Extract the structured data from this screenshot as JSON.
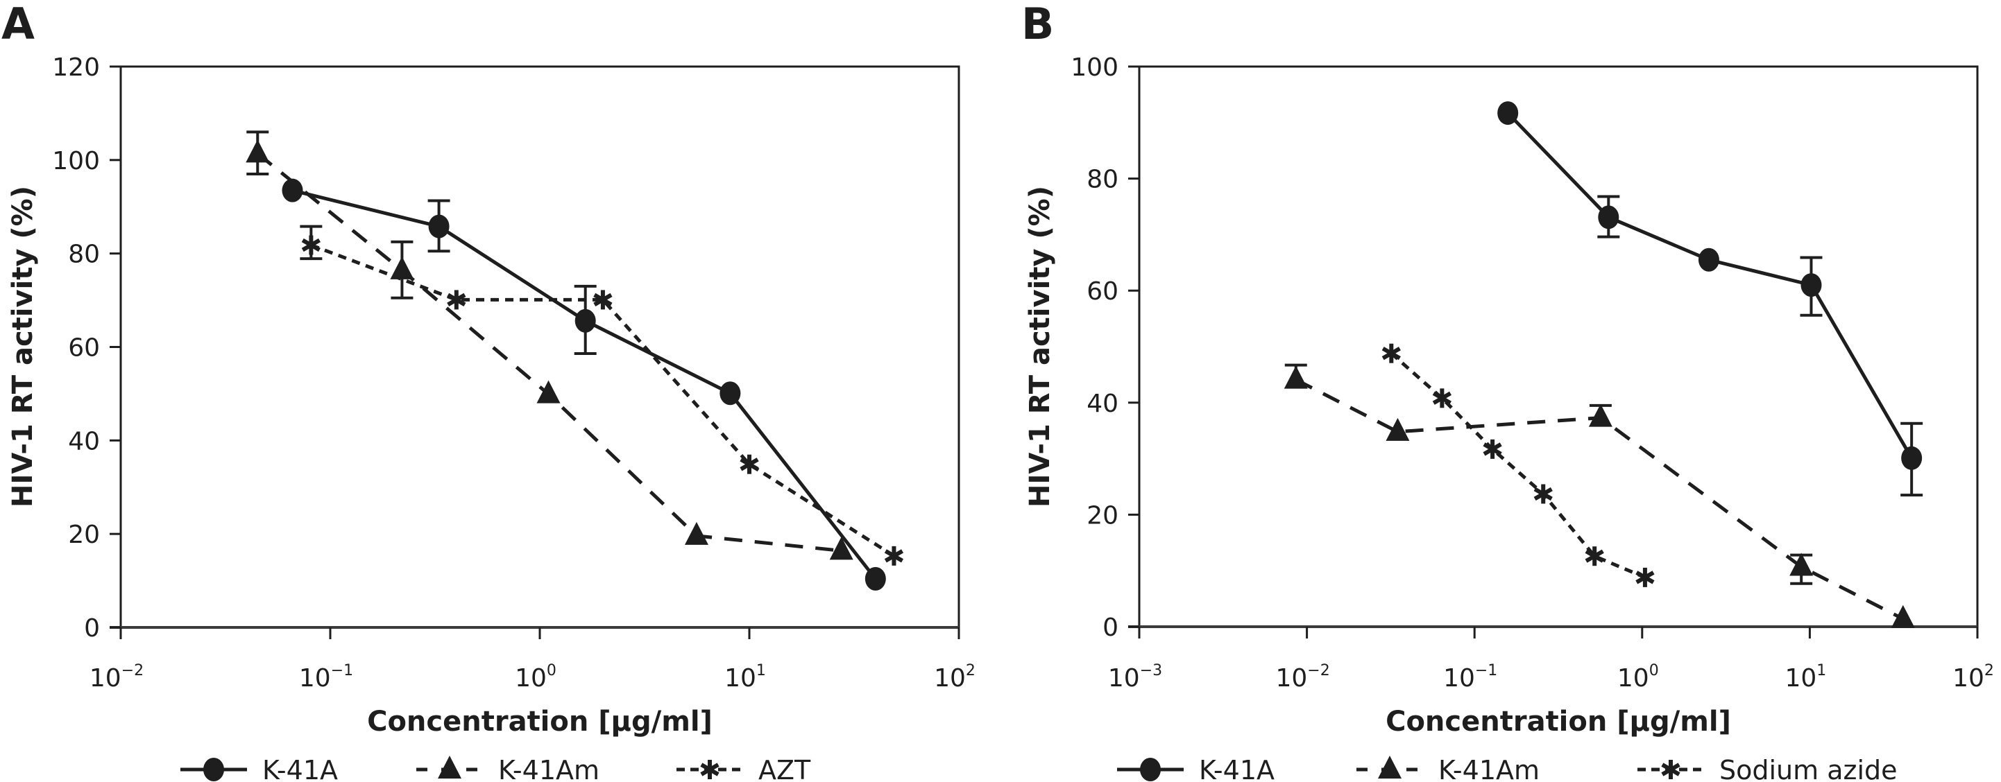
{
  "figure": {
    "panels": [
      "A",
      "B"
    ]
  },
  "chart_data": [
    {
      "panel": "A",
      "type": "line",
      "title": "",
      "xlabel": "Concentration [µg/ml]",
      "ylabel": "HIV-1 RT activity (%)",
      "xscale": "log",
      "xlim": [
        0.01,
        100
      ],
      "ylim": [
        0,
        120
      ],
      "x_ticks": [
        {
          "base": "10",
          "exp": "−2"
        },
        {
          "base": "10",
          "exp": "−1"
        },
        {
          "base": "10",
          "exp": "0"
        },
        {
          "base": "10",
          "exp": "1"
        },
        {
          "base": "10",
          "exp": "2"
        }
      ],
      "x_tick_values": [
        0.01,
        0.1,
        1,
        10,
        100
      ],
      "y_ticks": [
        0,
        20,
        40,
        60,
        80,
        100,
        120
      ],
      "y_tick_labels": [
        "0",
        "20",
        "40",
        "60",
        "80",
        "100",
        "120"
      ],
      "grid": false,
      "legend_position": "bottom",
      "series": [
        {
          "name": "K-41A",
          "marker": "circle",
          "line": "solid",
          "x": [
            0.066,
            0.33,
            1.65,
            8.1,
            40
          ],
          "y": [
            93.5,
            85.8,
            65.6,
            50.1,
            10.4
          ],
          "err_low": [
            null,
            80.5,
            58.6,
            null,
            null
          ],
          "err_high": [
            null,
            91.3,
            73.0,
            null,
            null
          ]
        },
        {
          "name": "K-41Am",
          "marker": "triangle",
          "line": "long-dash",
          "x": [
            0.045,
            0.22,
            1.1,
            5.6,
            27.5
          ],
          "y": [
            101.4,
            76.4,
            49.9,
            19.6,
            16.4
          ],
          "err_low": [
            97.0,
            70.5,
            null,
            null,
            null
          ],
          "err_high": [
            106.0,
            82.5,
            null,
            null,
            null
          ]
        },
        {
          "name": "AZT",
          "marker": "asterisk",
          "line": "short-dash",
          "x": [
            0.081,
            0.4,
            2.0,
            10,
            49
          ],
          "y": [
            81.8,
            70.1,
            70.1,
            34.9,
            15.3
          ],
          "err_low": [
            78.9,
            null,
            null,
            null,
            null
          ],
          "err_high": [
            85.8,
            null,
            null,
            null,
            null
          ]
        }
      ]
    },
    {
      "panel": "B",
      "type": "line",
      "title": "",
      "xlabel": "Concentration [µg/ml]",
      "ylabel": "HIV-1 RT activity (%)",
      "xscale": "log",
      "xlim": [
        0.001,
        100
      ],
      "ylim": [
        0,
        100
      ],
      "x_ticks": [
        {
          "base": "10",
          "exp": "−3"
        },
        {
          "base": "10",
          "exp": "−2"
        },
        {
          "base": "10",
          "exp": "−1"
        },
        {
          "base": "10",
          "exp": "0"
        },
        {
          "base": "10",
          "exp": "1"
        },
        {
          "base": "10",
          "exp": "2"
        }
      ],
      "x_tick_values": [
        0.001,
        0.01,
        0.1,
        1,
        10,
        100
      ],
      "y_ticks": [
        0,
        20,
        40,
        60,
        80,
        100
      ],
      "y_tick_labels": [
        "0",
        "20",
        "40",
        "60",
        "80",
        "100"
      ],
      "grid": false,
      "legend_position": "bottom",
      "series": [
        {
          "name": "K-41A",
          "marker": "circle",
          "line": "solid",
          "x": [
            0.158,
            0.63,
            2.5,
            10.2,
            40.5
          ],
          "y": [
            91.7,
            73.1,
            65.5,
            61.0,
            30.1
          ],
          "err_low": [
            null,
            69.6,
            null,
            55.6,
            23.5
          ],
          "err_high": [
            null,
            76.8,
            null,
            65.9,
            36.3
          ]
        },
        {
          "name": "K-41Am",
          "marker": "triangle",
          "line": "long-dash",
          "x": [
            0.0086,
            0.0348,
            0.565,
            8.9,
            36
          ],
          "y": [
            44.1,
            34.8,
            37.3,
            10.7,
            1.4
          ],
          "err_low": [
            null,
            null,
            null,
            7.7,
            null
          ],
          "err_high": [
            46.7,
            null,
            39.5,
            12.8,
            null
          ]
        },
        {
          "name": "Sodium azide",
          "marker": "asterisk",
          "line": "short-dash",
          "x": [
            0.0319,
            0.064,
            0.128,
            0.257,
            0.52,
            1.04
          ],
          "y": [
            48.8,
            40.8,
            31.7,
            23.7,
            12.6,
            8.8
          ],
          "err_low": [
            null,
            null,
            null,
            null,
            null,
            null
          ],
          "err_high": [
            null,
            null,
            null,
            null,
            null,
            null
          ]
        }
      ]
    }
  ]
}
